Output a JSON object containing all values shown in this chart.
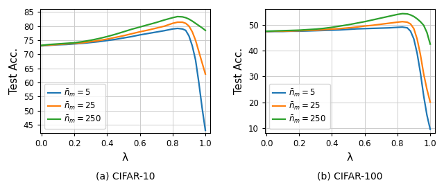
{
  "cifar10": {
    "title": "(a) CIFAR-10",
    "ylabel": "Test Acc.",
    "xlabel": "λ",
    "ylim": [
      42,
      86
    ],
    "yticks": [
      45,
      50,
      55,
      60,
      65,
      70,
      75,
      80,
      85
    ],
    "xlim": [
      -0.01,
      1.03
    ],
    "xticks": [
      0.0,
      0.2,
      0.4,
      0.6,
      0.8,
      1.0
    ],
    "series": [
      {
        "label": "$\\bar{n}_m = 5$",
        "color": "#1f77b4",
        "x": [
          0.0,
          0.05,
          0.1,
          0.15,
          0.2,
          0.25,
          0.3,
          0.35,
          0.4,
          0.45,
          0.5,
          0.55,
          0.6,
          0.65,
          0.7,
          0.75,
          0.8,
          0.83,
          0.86,
          0.88,
          0.9,
          0.92,
          0.94,
          0.96,
          0.98,
          1.0
        ],
        "y": [
          73.0,
          73.2,
          73.4,
          73.5,
          73.7,
          73.9,
          74.2,
          74.5,
          74.9,
          75.3,
          75.8,
          76.3,
          76.9,
          77.4,
          77.9,
          78.4,
          79.0,
          79.2,
          79.0,
          78.5,
          76.5,
          73.0,
          68.0,
          60.0,
          51.0,
          43.0
        ]
      },
      {
        "label": "$\\bar{n}_m = 25$",
        "color": "#ff7f0e",
        "x": [
          0.0,
          0.05,
          0.1,
          0.15,
          0.2,
          0.25,
          0.3,
          0.35,
          0.4,
          0.45,
          0.5,
          0.55,
          0.6,
          0.65,
          0.7,
          0.75,
          0.8,
          0.83,
          0.86,
          0.88,
          0.9,
          0.92,
          0.94,
          0.96,
          0.98,
          1.0
        ],
        "y": [
          73.1,
          73.3,
          73.5,
          73.7,
          73.9,
          74.1,
          74.5,
          74.9,
          75.4,
          76.0,
          76.6,
          77.3,
          78.0,
          78.6,
          79.3,
          80.0,
          81.0,
          81.4,
          81.4,
          81.0,
          80.0,
          78.0,
          75.0,
          71.0,
          67.0,
          63.0
        ]
      },
      {
        "label": "$\\bar{n}_m = 250$",
        "color": "#2ca02c",
        "x": [
          0.0,
          0.05,
          0.1,
          0.15,
          0.2,
          0.25,
          0.3,
          0.35,
          0.4,
          0.45,
          0.5,
          0.55,
          0.6,
          0.65,
          0.7,
          0.75,
          0.8,
          0.83,
          0.86,
          0.88,
          0.9,
          0.92,
          0.94,
          0.96,
          0.98,
          1.0
        ],
        "y": [
          73.2,
          73.5,
          73.7,
          73.9,
          74.1,
          74.5,
          75.0,
          75.6,
          76.3,
          77.1,
          78.0,
          78.9,
          79.7,
          80.5,
          81.3,
          82.2,
          83.0,
          83.4,
          83.3,
          83.0,
          82.5,
          81.8,
          81.0,
          80.2,
          79.4,
          78.5
        ]
      }
    ]
  },
  "cifar100": {
    "title": "(b) CIFAR-100",
    "ylabel": "Test Acc.",
    "xlabel": "λ",
    "ylim": [
      8,
      56
    ],
    "yticks": [
      10,
      20,
      30,
      40,
      50
    ],
    "xlim": [
      -0.01,
      1.03
    ],
    "xticks": [
      0.0,
      0.2,
      0.4,
      0.6,
      0.8,
      1.0
    ],
    "series": [
      {
        "label": "$\\bar{n}_m = 5$",
        "color": "#1f77b4",
        "x": [
          0.0,
          0.05,
          0.1,
          0.15,
          0.2,
          0.25,
          0.3,
          0.35,
          0.4,
          0.45,
          0.5,
          0.55,
          0.6,
          0.65,
          0.7,
          0.75,
          0.8,
          0.83,
          0.86,
          0.88,
          0.9,
          0.92,
          0.94,
          0.96,
          0.98,
          1.0
        ],
        "y": [
          47.3,
          47.4,
          47.4,
          47.5,
          47.5,
          47.6,
          47.7,
          47.8,
          47.9,
          48.0,
          48.2,
          48.4,
          48.5,
          48.6,
          48.7,
          48.8,
          49.0,
          49.1,
          48.8,
          47.5,
          44.5,
          39.0,
          31.5,
          22.5,
          15.0,
          9.5
        ]
      },
      {
        "label": "$\\bar{n}_m = 25$",
        "color": "#ff7f0e",
        "x": [
          0.0,
          0.05,
          0.1,
          0.15,
          0.2,
          0.25,
          0.3,
          0.35,
          0.4,
          0.45,
          0.5,
          0.55,
          0.6,
          0.65,
          0.7,
          0.75,
          0.8,
          0.83,
          0.86,
          0.88,
          0.9,
          0.92,
          0.94,
          0.96,
          0.98,
          1.0
        ],
        "y": [
          47.4,
          47.5,
          47.5,
          47.6,
          47.7,
          47.8,
          47.9,
          48.1,
          48.3,
          48.5,
          48.8,
          49.1,
          49.5,
          49.8,
          50.2,
          50.6,
          51.0,
          51.2,
          51.0,
          50.3,
          48.5,
          44.5,
          38.5,
          31.0,
          25.0,
          20.0
        ]
      },
      {
        "label": "$\\bar{n}_m = 250$",
        "color": "#2ca02c",
        "x": [
          0.0,
          0.05,
          0.1,
          0.15,
          0.2,
          0.25,
          0.3,
          0.35,
          0.4,
          0.45,
          0.5,
          0.55,
          0.6,
          0.65,
          0.7,
          0.75,
          0.8,
          0.83,
          0.86,
          0.88,
          0.9,
          0.92,
          0.94,
          0.96,
          0.98,
          1.0
        ],
        "y": [
          47.5,
          47.6,
          47.7,
          47.8,
          47.9,
          48.1,
          48.3,
          48.6,
          49.0,
          49.5,
          50.0,
          50.6,
          51.2,
          51.9,
          52.6,
          53.3,
          54.0,
          54.3,
          54.2,
          53.8,
          53.2,
          52.3,
          51.2,
          49.8,
          47.0,
          42.5
        ]
      }
    ]
  },
  "line_width": 1.6,
  "legend_fontsize": 8.5,
  "axis_label_fontsize": 11,
  "tick_fontsize": 8.5,
  "caption_fontsize": 10
}
